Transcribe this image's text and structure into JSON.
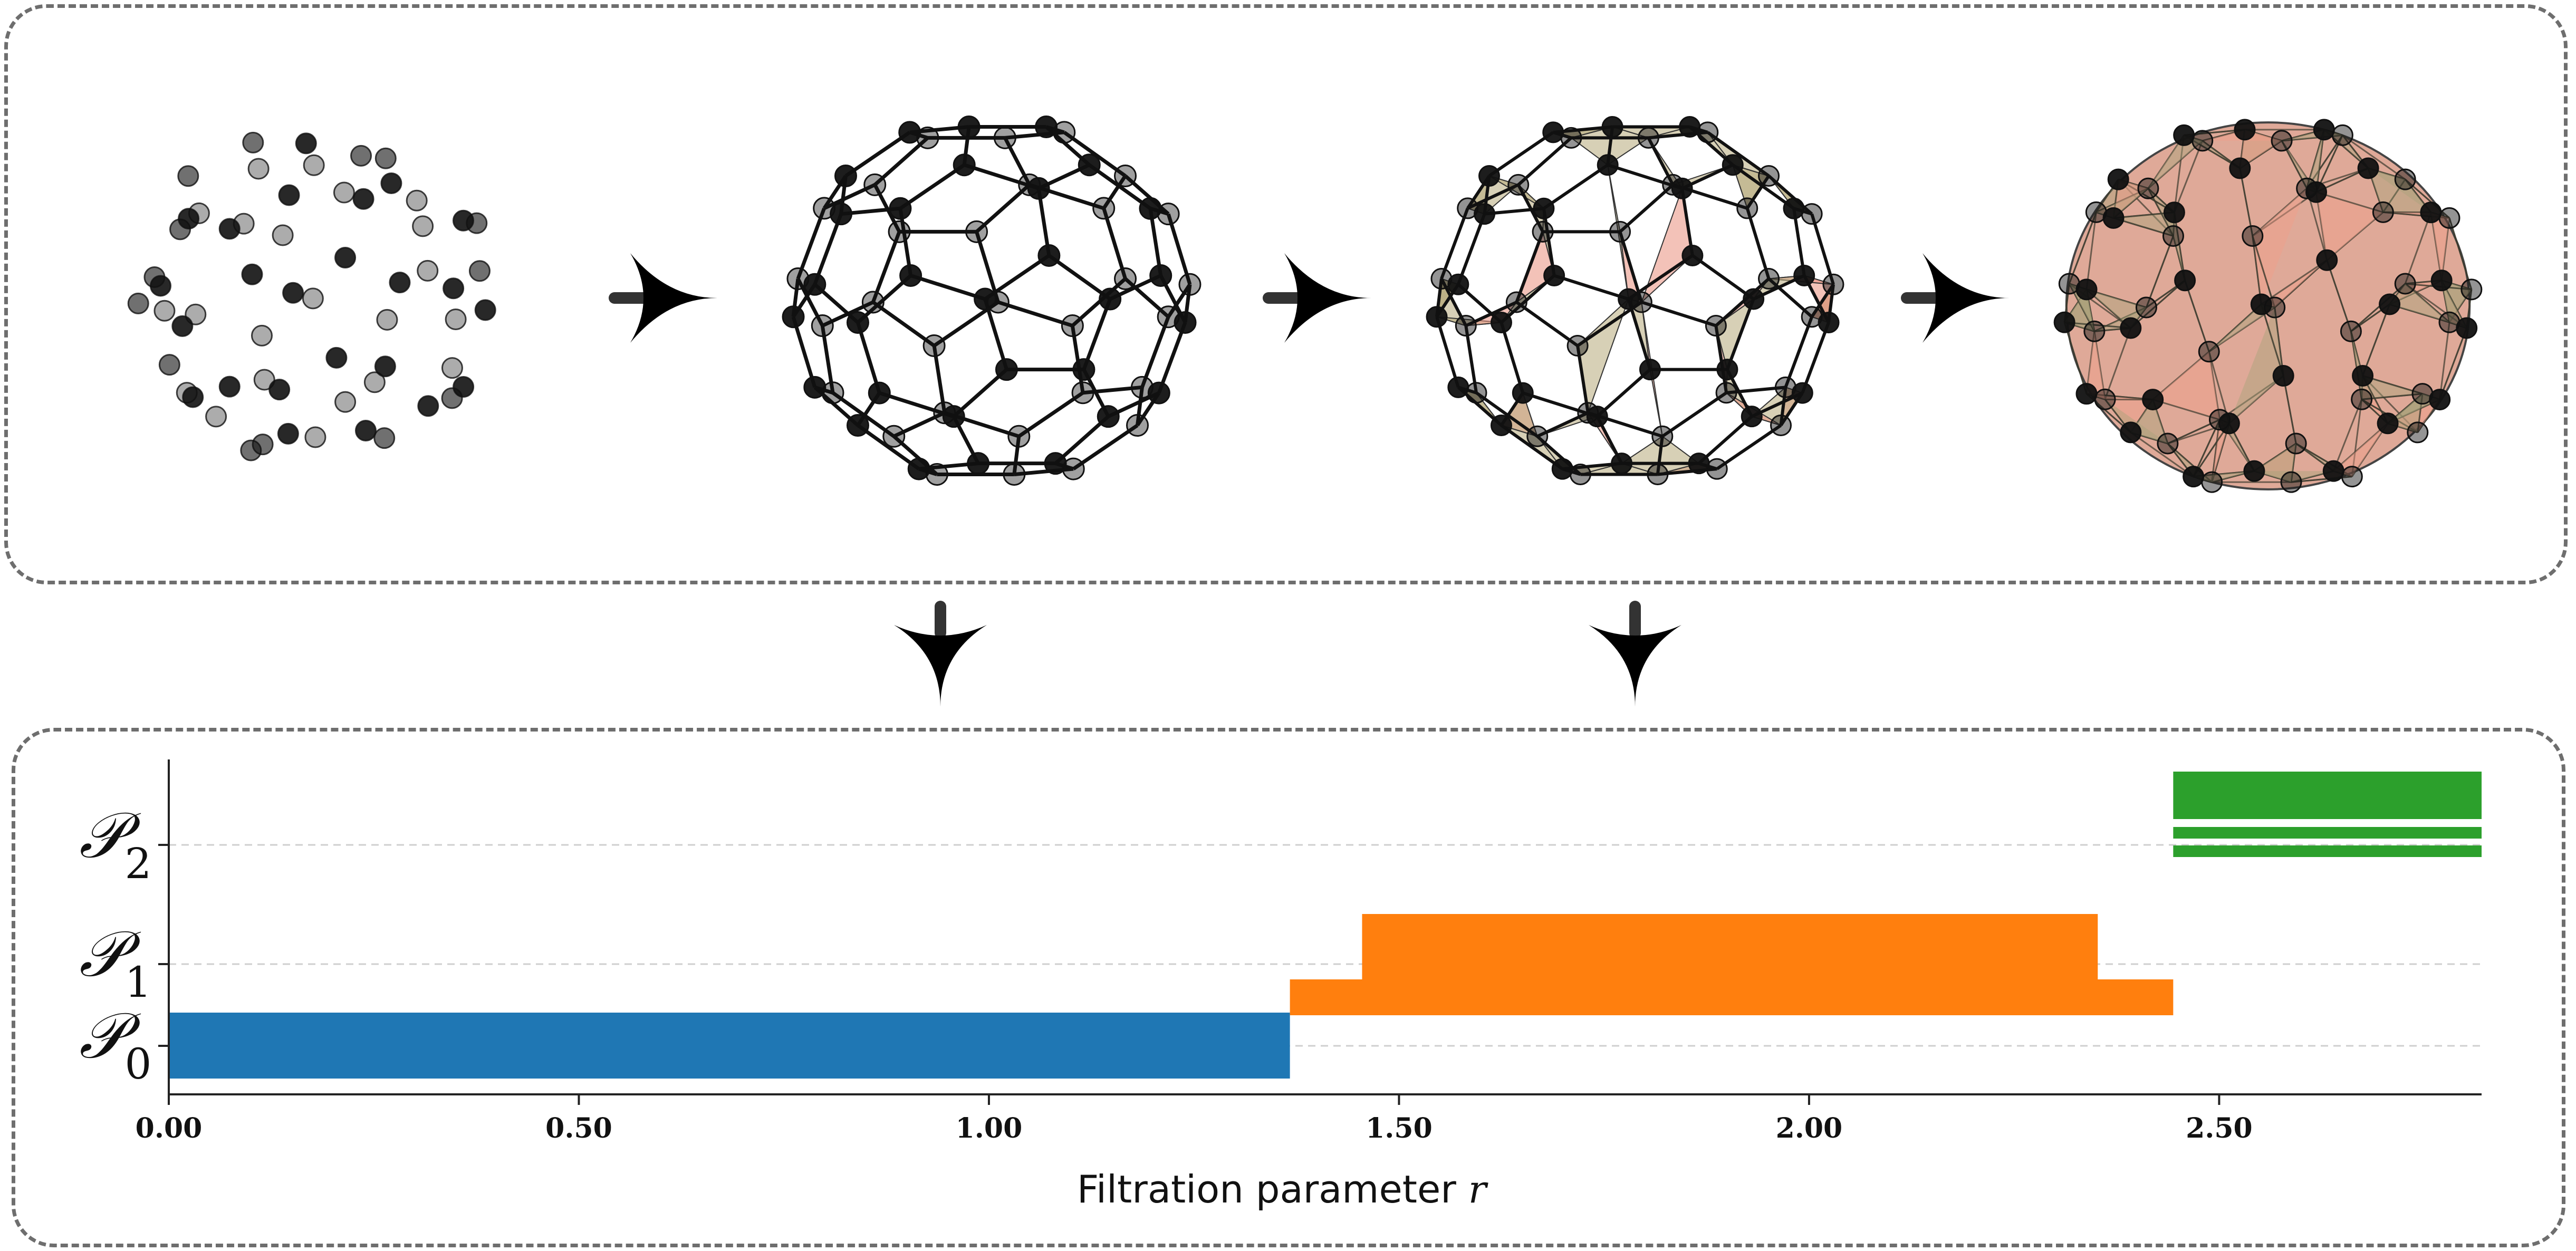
{
  "figure": {
    "stages": [
      {
        "name": "point-cloud"
      },
      {
        "name": "graph"
      },
      {
        "name": "simplicial-complex-partial"
      },
      {
        "name": "simplicial-complex-full"
      }
    ],
    "arrow_icon": "arrow-right-icon",
    "down_arrow_icon": "arrow-down-icon"
  },
  "chart_data": {
    "type": "bar",
    "subtype": "persistence-barcode",
    "xlabel": "Filtration parameter r",
    "xlim": [
      0.0,
      2.82
    ],
    "xticks": [
      "0.00",
      "0.50",
      "1.00",
      "1.50",
      "2.00",
      "2.50"
    ],
    "xtick_values": [
      0.0,
      0.5,
      1.0,
      1.5,
      2.0,
      2.5
    ],
    "grid": "horizontal dashed at series levels",
    "series": [
      {
        "name": "𝒫0",
        "color": "#1f77b4",
        "bars": [
          {
            "start": 0.0,
            "end": 1.367,
            "count": 1
          }
        ]
      },
      {
        "name": "𝒫1",
        "color": "#ff7f0e",
        "bars": [
          {
            "start": 1.367,
            "end": 2.444,
            "level": "outer"
          },
          {
            "start": 1.455,
            "end": 2.352,
            "level": "inner"
          }
        ]
      },
      {
        "name": "𝒫2",
        "color": "#2ca02c",
        "bars": [
          {
            "start": 2.444,
            "end": 2.82,
            "count": 3
          }
        ]
      }
    ]
  }
}
